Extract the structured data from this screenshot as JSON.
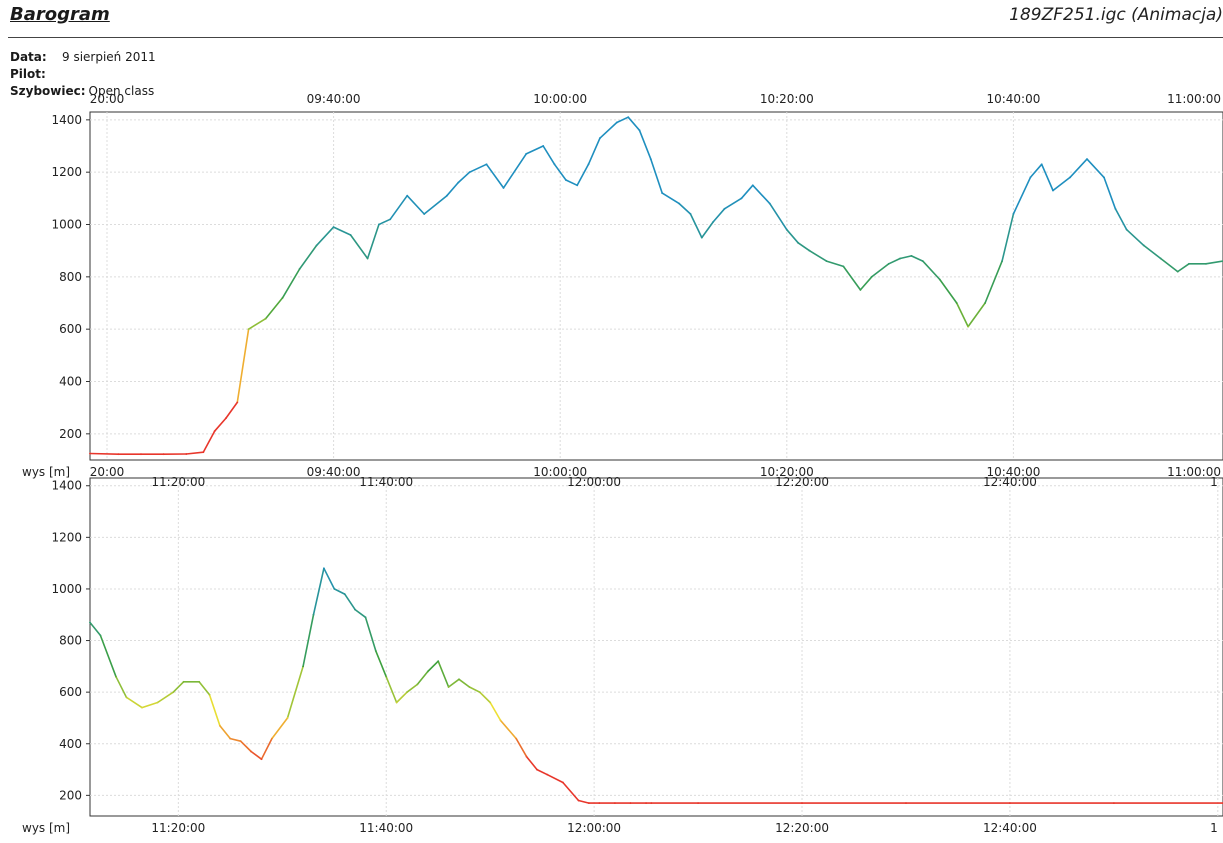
{
  "header": {
    "title": "Barogram",
    "file": "189ZF251.igc (Animacja)",
    "date_label": "Data:",
    "date_value": "9 sierpień 2011",
    "pilot_label": "Pilot:",
    "glider_label": "Szybowiec:",
    "glider_value": "Open class"
  },
  "colors": {
    "low": "#e8362b",
    "mid_low": "#f2e234",
    "mid": "#3ea13c",
    "high": "#1f8fbf",
    "grid": "#dcdcdc",
    "axis": "#333333"
  },
  "chart_data": [
    {
      "type": "line",
      "ylabel": "wys [m]",
      "ylim": [
        100,
        1430
      ],
      "yticks": [
        200,
        400,
        600,
        800,
        1000,
        1200,
        1400
      ],
      "xlim": [
        "09:18:30",
        "10:58:30"
      ],
      "xticks": [
        "09:20:00",
        "09:40:00",
        "10:00:00",
        "10:20:00",
        "10:40:00",
        "11:00:00"
      ],
      "xtick_labels": [
        "20:00",
        "09:40:00",
        "10:00:00",
        "10:20:00",
        "10:40:00",
        "11:00:00"
      ],
      "grid": true,
      "series": [
        {
          "x": [
            "09:18:30",
            "09:21:00",
            "09:23:00",
            "09:25:00",
            "09:27:00",
            "09:28:30",
            "09:29:30",
            "09:30:30",
            "09:31:30",
            "09:32:30",
            "09:34:00",
            "09:35:30",
            "09:37:00",
            "09:38:30",
            "09:40:00",
            "09:41:30",
            "09:43:00",
            "09:44:00",
            "09:45:00",
            "09:46:30",
            "09:48:00",
            "09:50:00",
            "09:51:00",
            "09:52:00",
            "09:53:30",
            "09:55:00",
            "09:57:00",
            "09:58:30",
            "09:59:30",
            "10:00:30",
            "10:01:30",
            "10:02:30",
            "10:03:30",
            "10:05:00",
            "10:06:00",
            "10:07:00",
            "10:08:00",
            "10:09:00",
            "10:10:30",
            "10:11:30",
            "10:12:30",
            "10:13:30",
            "10:14:30",
            "10:16:00",
            "10:17:00",
            "10:18:30",
            "10:20:00",
            "10:21:00",
            "10:22:00",
            "10:23:30",
            "10:25:00",
            "10:26:30",
            "10:27:30",
            "10:29:00",
            "10:30:00",
            "10:31:00",
            "10:32:00",
            "10:33:30",
            "10:35:00",
            "10:36:00",
            "10:37:30",
            "10:39:00",
            "10:40:00",
            "10:41:30",
            "10:42:30",
            "10:43:30",
            "10:45:00",
            "10:46:30",
            "10:48:00",
            "10:49:00",
            "10:50:00",
            "10:51:30",
            "10:53:00",
            "10:54:30",
            "10:55:30",
            "10:57:00",
            "10:58:30"
          ],
          "y": [
            125,
            122,
            122,
            122,
            123,
            130,
            210,
            260,
            320,
            600,
            640,
            720,
            830,
            920,
            990,
            960,
            870,
            1000,
            1020,
            1110,
            1040,
            1110,
            1160,
            1200,
            1230,
            1140,
            1270,
            1300,
            1230,
            1170,
            1150,
            1230,
            1330,
            1390,
            1410,
            1360,
            1250,
            1120,
            1080,
            1040,
            950,
            1010,
            1060,
            1100,
            1150,
            1080,
            980,
            930,
            900,
            860,
            840,
            750,
            800,
            850,
            870,
            880,
            860,
            790,
            700,
            610,
            700,
            860,
            1040,
            1180,
            1230,
            1130,
            1180,
            1250,
            1180,
            1060,
            980,
            920,
            870,
            820,
            850,
            850,
            860
          ]
        }
      ]
    },
    {
      "type": "line",
      "ylabel": "wys [m]",
      "ylim": [
        120,
        1430
      ],
      "yticks": [
        200,
        400,
        600,
        800,
        1000,
        1200,
        1400
      ],
      "xlim": [
        "11:11:30",
        "13:00:30"
      ],
      "xticks": [
        "11:20:00",
        "11:40:00",
        "12:00:00",
        "12:20:00",
        "12:40:00",
        "13:00:00"
      ],
      "xtick_labels": [
        "11:20:00",
        "11:40:00",
        "12:00:00",
        "12:20:00",
        "12:40:00",
        "1"
      ],
      "grid": true,
      "series": [
        {
          "x": [
            "11:11:30",
            "11:12:30",
            "11:14:00",
            "11:15:00",
            "11:16:30",
            "11:18:00",
            "11:19:30",
            "11:20:30",
            "11:22:00",
            "11:23:00",
            "11:24:00",
            "11:25:00",
            "11:26:00",
            "11:27:00",
            "11:28:00",
            "11:29:00",
            "11:30:30",
            "11:32:00",
            "11:33:00",
            "11:34:00",
            "11:35:00",
            "11:36:00",
            "11:37:00",
            "11:38:00",
            "11:39:00",
            "11:40:00",
            "11:41:00",
            "11:42:00",
            "11:43:00",
            "11:44:00",
            "11:45:00",
            "11:46:00",
            "11:47:00",
            "11:48:00",
            "11:49:00",
            "11:50:00",
            "11:51:00",
            "11:52:30",
            "11:53:30",
            "11:54:30",
            "11:55:30",
            "11:57:00",
            "11:58:30",
            "11:59:30",
            "12:00:30",
            "12:02:00",
            "12:03:30",
            "12:05:00",
            "12:05:30",
            "12:10:00",
            "12:20:00",
            "12:30:00",
            "12:40:00",
            "12:50:00",
            "13:00:30"
          ],
          "y": [
            870,
            820,
            660,
            580,
            540,
            560,
            600,
            640,
            640,
            590,
            470,
            420,
            410,
            370,
            340,
            420,
            500,
            700,
            900,
            1080,
            1000,
            980,
            920,
            890,
            760,
            660,
            560,
            600,
            630,
            680,
            720,
            620,
            650,
            620,
            600,
            560,
            490,
            420,
            350,
            300,
            280,
            250,
            180,
            170,
            170,
            170,
            170,
            170,
            170,
            170,
            170,
            170,
            170,
            170,
            170
          ]
        }
      ]
    }
  ]
}
